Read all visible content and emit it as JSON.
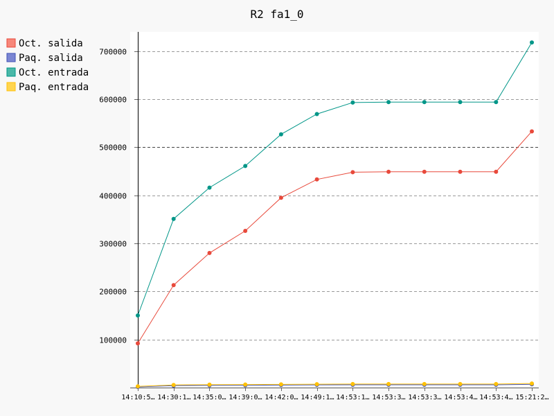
{
  "chart_data": {
    "type": "line",
    "title": "R2 fa1_0",
    "categories": [
      "14:10:5…",
      "14:30:1…",
      "14:35:0…",
      "14:39:0…",
      "14:42:0…",
      "14:49:1…",
      "14:53:1…",
      "14:53:3…",
      "14:53:3…",
      "14:53:4…",
      "14:53:4…",
      "15:21:2…"
    ],
    "ylim": [
      0,
      740000
    ],
    "y_ticks": [
      100000,
      200000,
      300000,
      400000,
      500000,
      600000,
      700000
    ],
    "y_tick_labels": [
      "100000",
      "200000",
      "300000",
      "400000",
      "500000",
      "600000",
      "700000"
    ],
    "grid": true,
    "legend_position": "left",
    "series": [
      {
        "name": "Oct. salida",
        "legend_color": "#f7877a",
        "color": "#e8493b",
        "values": [
          92000,
          213000,
          280000,
          326000,
          395000,
          433000,
          448000,
          449000,
          449000,
          449000,
          449000,
          533000
        ]
      },
      {
        "name": "Paq. salida",
        "legend_color": "#7b86d3",
        "color": "#3f51b5",
        "values": [
          1500,
          4000,
          4500,
          4800,
          5200,
          5600,
          5800,
          5800,
          5800,
          5800,
          5800,
          6800
        ]
      },
      {
        "name": "Oct. entrada",
        "legend_color": "#4ab8a8",
        "color": "#009688",
        "values": [
          150000,
          351000,
          416000,
          461000,
          527000,
          569000,
          593000,
          594000,
          594000,
          594000,
          594000,
          718000
        ]
      },
      {
        "name": "Paq. entrada",
        "legend_color": "#ffd54f",
        "color": "#ffc107",
        "values": [
          2500,
          5500,
          6000,
          6300,
          6700,
          7100,
          7300,
          7300,
          7300,
          7300,
          7300,
          8500
        ]
      }
    ]
  }
}
